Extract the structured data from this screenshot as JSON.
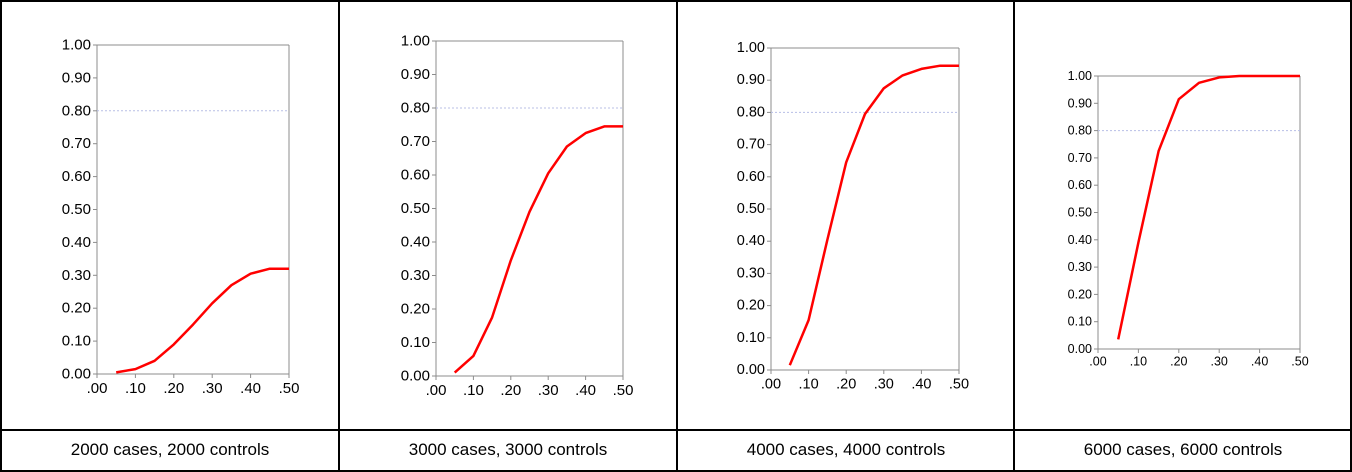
{
  "colors": {
    "series": "#ff0000",
    "threshold": "#b8bfe6",
    "axis": "#8c8c8c",
    "border": "#000000"
  },
  "chart_data": [
    {
      "type": "line",
      "caption": "2000 cases, 2000 controls",
      "x": [
        0.05,
        0.1,
        0.15,
        0.2,
        0.25,
        0.3,
        0.35,
        0.4,
        0.45,
        0.5
      ],
      "y": [
        0.005,
        0.015,
        0.04,
        0.09,
        0.15,
        0.215,
        0.27,
        0.305,
        0.32,
        0.32
      ],
      "xlim": [
        0,
        0.5
      ],
      "ylim": [
        0,
        1
      ],
      "xticks": [
        ".00",
        ".10",
        ".20",
        ".30",
        ".40",
        ".50"
      ],
      "yticks": [
        "0.00",
        "0.10",
        "0.20",
        "0.30",
        "0.40",
        "0.50",
        "0.60",
        "0.70",
        "0.80",
        "0.90",
        "1.00"
      ],
      "reference_line": 0.8,
      "grid": false
    },
    {
      "type": "line",
      "caption": "3000 cases, 3000 controls",
      "x": [
        0.05,
        0.1,
        0.15,
        0.2,
        0.25,
        0.3,
        0.35,
        0.4,
        0.45,
        0.5
      ],
      "y": [
        0.01,
        0.06,
        0.175,
        0.345,
        0.49,
        0.605,
        0.685,
        0.725,
        0.745,
        0.745
      ],
      "xlim": [
        0,
        0.5
      ],
      "ylim": [
        0,
        1
      ],
      "xticks": [
        ".00",
        ".10",
        ".20",
        ".30",
        ".40",
        ".50"
      ],
      "yticks": [
        "0.00",
        "0.10",
        "0.20",
        "0.30",
        "0.40",
        "0.50",
        "0.60",
        "0.70",
        "0.80",
        "0.90",
        "1.00"
      ],
      "reference_line": 0.8,
      "grid": false
    },
    {
      "type": "line",
      "caption": "4000 cases, 4000 controls",
      "x": [
        0.05,
        0.1,
        0.15,
        0.2,
        0.25,
        0.3,
        0.35,
        0.4,
        0.45,
        0.5
      ],
      "y": [
        0.015,
        0.155,
        0.405,
        0.645,
        0.795,
        0.875,
        0.915,
        0.935,
        0.945,
        0.945
      ],
      "xlim": [
        0,
        0.5
      ],
      "ylim": [
        0,
        1
      ],
      "xticks": [
        ".00",
        ".10",
        ".20",
        ".30",
        ".40",
        ".50"
      ],
      "yticks": [
        "0.00",
        "0.10",
        "0.20",
        "0.30",
        "0.40",
        "0.50",
        "0.60",
        "0.70",
        "0.80",
        "0.90",
        "1.00"
      ],
      "reference_line": 0.8,
      "grid": false
    },
    {
      "type": "line",
      "caption": "6000 cases, 6000 controls",
      "x": [
        0.05,
        0.1,
        0.15,
        0.2,
        0.25,
        0.3,
        0.35,
        0.4,
        0.45,
        0.5
      ],
      "y": [
        0.035,
        0.39,
        0.725,
        0.915,
        0.975,
        0.995,
        1.0,
        1.0,
        1.0,
        1.0
      ],
      "xlim": [
        0,
        0.5
      ],
      "ylim": [
        0,
        1
      ],
      "xticks": [
        ".00",
        ".10",
        ".20",
        ".30",
        ".40",
        ".50"
      ],
      "yticks": [
        "0.00",
        "0.10",
        "0.20",
        "0.30",
        "0.40",
        "0.50",
        "0.60",
        "0.70",
        "0.80",
        "0.90",
        "1.00"
      ],
      "reference_line": 0.8,
      "grid": false
    }
  ]
}
